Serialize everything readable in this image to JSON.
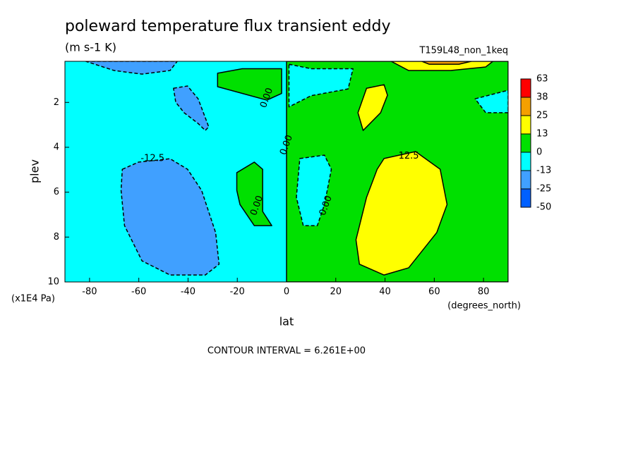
{
  "chart_data": {
    "type": "contour",
    "title": "poleward temperature flux transient eddy",
    "subtitle": "(m s-1 K)",
    "run_label": "T159L48_non_1keq",
    "x_label": "lat",
    "x_units": "(degrees_north)",
    "y_label": "plev",
    "y_units": "(x1E4 Pa)",
    "note": "CONTOUR INTERVAL = 6.261E+00",
    "xlim": [
      -90,
      90
    ],
    "ylim": [
      0.17,
      10
    ],
    "xticks": [
      -80,
      -60,
      -40,
      -20,
      0,
      20,
      40,
      60,
      80
    ],
    "yticks": [
      2,
      4,
      6,
      8,
      10
    ],
    "levels": [
      -50,
      -25,
      -13,
      0,
      13,
      25,
      38,
      63
    ],
    "colors": [
      "#0060ff",
      "#40a0ff",
      "#00ffff",
      "#00e000",
      "#ffff00",
      "#f5a000",
      "#ff0000"
    ],
    "regions": [
      {
        "level": -13,
        "points": [
          [
            -90,
            0.17
          ],
          [
            90,
            0.17
          ],
          [
            90,
            10
          ],
          [
            -90,
            10
          ]
        ]
      },
      {
        "level": 0,
        "points": [
          [
            0,
            0.17
          ],
          [
            90,
            0.17
          ],
          [
            90,
            10
          ],
          [
            0,
            10
          ]
        ]
      },
      {
        "level": -13,
        "points": [
          [
            1,
            0.3
          ],
          [
            10,
            0.5
          ],
          [
            27,
            0.5
          ],
          [
            25,
            1.4
          ],
          [
            10,
            1.7
          ],
          [
            1,
            2.2
          ]
        ]
      },
      {
        "level": -13,
        "points": [
          [
            5.4,
            4.5
          ],
          [
            15.4,
            4.35
          ],
          [
            18.2,
            4.98
          ],
          [
            15.4,
            6.55
          ],
          [
            12.5,
            7.49
          ],
          [
            6.8,
            7.49
          ],
          [
            4,
            6.23
          ]
        ]
      },
      {
        "level": -13,
        "points": [
          [
            76.6,
            1.84
          ],
          [
            90,
            1.46
          ],
          [
            90,
            2.46
          ],
          [
            80.9,
            2.46
          ]
        ]
      },
      {
        "level": 0,
        "points": [
          [
            -28,
            0.7
          ],
          [
            -18,
            0.5
          ],
          [
            -2,
            0.5
          ],
          [
            -2,
            1.6
          ],
          [
            -8,
            1.9
          ],
          [
            -18,
            1.6
          ],
          [
            -28,
            1.3
          ]
        ]
      },
      {
        "level": 0,
        "points": [
          [
            -20.2,
            5.13
          ],
          [
            -13.1,
            4.66
          ],
          [
            -9.7,
            4.98
          ],
          [
            -9.7,
            6.86
          ],
          [
            -6,
            7.49
          ],
          [
            -13.1,
            7.49
          ],
          [
            -18.9,
            6.55
          ],
          [
            -20.2,
            5.92
          ]
        ]
      },
      {
        "level": -25,
        "points": [
          [
            -66.7,
            4.98
          ],
          [
            -60.1,
            4.66
          ],
          [
            -47.3,
            4.51
          ],
          [
            -40.2,
            4.98
          ],
          [
            -34.5,
            5.92
          ],
          [
            -28.8,
            7.8
          ],
          [
            -27.4,
            9.21
          ],
          [
            -33,
            9.69
          ],
          [
            -47.3,
            9.69
          ],
          [
            -58.7,
            9.06
          ],
          [
            -65.8,
            7.49
          ],
          [
            -67.2,
            5.92
          ]
        ]
      },
      {
        "level": -25,
        "points": [
          [
            -45.9,
            1.37
          ],
          [
            -40.2,
            1.27
          ],
          [
            -35.9,
            1.84
          ],
          [
            -31.6,
            3.09
          ],
          [
            -33,
            3.25
          ],
          [
            -35.9,
            2.94
          ],
          [
            -41.6,
            2.46
          ],
          [
            -45,
            1.99
          ]
        ]
      },
      {
        "level": -25,
        "points": [
          [
            -81.5,
            0.17
          ],
          [
            -44.4,
            0.17
          ],
          [
            -47.3,
            0.58
          ],
          [
            -58.7,
            0.74
          ],
          [
            -70,
            0.58
          ]
        ]
      },
      {
        "level": 13,
        "points": [
          [
            39.6,
            4.5
          ],
          [
            52.4,
            4.19
          ],
          [
            62.4,
            4.98
          ],
          [
            65.2,
            6.55
          ],
          [
            61,
            7.8
          ],
          [
            49.6,
            9.37
          ],
          [
            39.6,
            9.69
          ],
          [
            29.6,
            9.21
          ],
          [
            28.2,
            8.12
          ],
          [
            32.5,
            6.23
          ],
          [
            36.8,
            4.98
          ]
        ]
      },
      {
        "level": 13,
        "points": [
          [
            32.5,
            1.37
          ],
          [
            39.6,
            1.21
          ],
          [
            41,
            1.68
          ],
          [
            38.2,
            2.46
          ],
          [
            31.1,
            3.25
          ],
          [
            29,
            2.46
          ]
        ]
      },
      {
        "level": 13,
        "points": [
          [
            42.5,
            0.17
          ],
          [
            83.8,
            0.17
          ],
          [
            80.9,
            0.42
          ],
          [
            66.7,
            0.58
          ],
          [
            49.6,
            0.58
          ]
        ]
      },
      {
        "level": 25,
        "points": [
          [
            55,
            0.17
          ],
          [
            75,
            0.17
          ],
          [
            70,
            0.3
          ],
          [
            58,
            0.3
          ]
        ]
      }
    ],
    "annotations": [
      {
        "text": "-12.5",
        "lat": -54.4,
        "plev": 4.5
      },
      {
        "text": "12.5",
        "lat": 49.6,
        "plev": 4.4
      },
      {
        "text": "0.00",
        "lat": -8,
        "plev": 1.8
      },
      {
        "text": "0.00",
        "lat": 0,
        "plev": 3.9
      },
      {
        "text": "0.00",
        "lat": -12,
        "plev": 6.6
      },
      {
        "text": "0.00",
        "lat": 16,
        "plev": 6.6
      }
    ]
  }
}
